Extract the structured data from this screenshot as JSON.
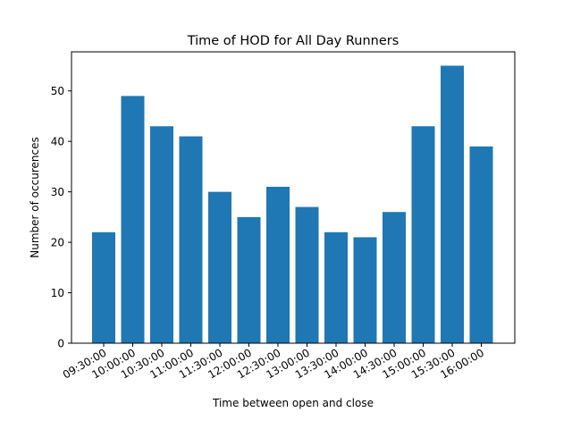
{
  "chart_data": {
    "type": "bar",
    "title": "Time of HOD for All Day Runners",
    "xlabel": "Time between open and close",
    "ylabel": "Number of occurences",
    "categories": [
      "09:30:00",
      "10:00:00",
      "10:30:00",
      "11:00:00",
      "11:30:00",
      "12:00:00",
      "12:30:00",
      "13:00:00",
      "13:30:00",
      "14:00:00",
      "14:30:00",
      "15:00:00",
      "15:30:00",
      "16:00:00"
    ],
    "values": [
      22,
      49,
      43,
      41,
      30,
      25,
      31,
      27,
      22,
      21,
      26,
      43,
      55,
      39
    ],
    "ylim": [
      0,
      57.75
    ],
    "yticks": [
      0,
      10,
      20,
      30,
      40,
      50
    ],
    "bar_color": "#1f77b4",
    "grid": false,
    "legend": "none"
  }
}
